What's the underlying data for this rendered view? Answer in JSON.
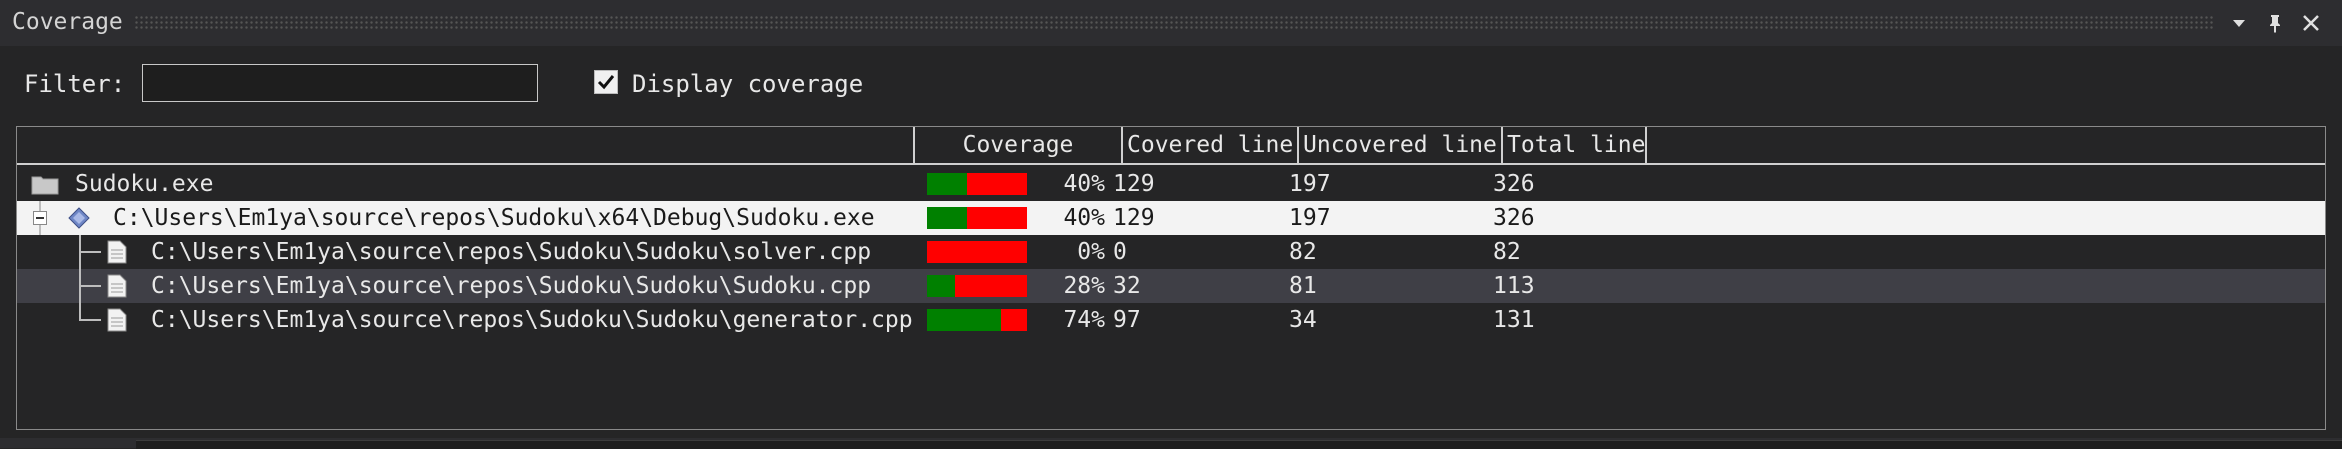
{
  "window": {
    "title": "Coverage"
  },
  "filter": {
    "label": "Filter:",
    "value": "",
    "placeholder": ""
  },
  "display_coverage": {
    "label": "Display coverage",
    "checked": true
  },
  "columns": [
    "Coverage",
    "Covered line",
    "Uncovered line",
    "Total line"
  ],
  "rows": [
    {
      "name": "Sudoku.exe",
      "icon": "folder-icon",
      "coverage": 0.4,
      "pct": "40%",
      "covered": "129",
      "uncovered": "197",
      "total": "326",
      "state": "normal"
    },
    {
      "name": "C:\\Users\\Em1ya\\source\\repos\\Sudoku\\x64\\Debug\\Sudoku.exe",
      "icon": "executable-icon",
      "coverage": 0.4,
      "pct": "40%",
      "covered": "129",
      "uncovered": "197",
      "total": "326",
      "state": "selected",
      "expanded": true
    },
    {
      "name": "C:\\Users\\Em1ya\\source\\repos\\Sudoku\\Sudoku\\solver.cpp",
      "icon": "file-icon",
      "coverage": 0.0,
      "pct": "0%",
      "covered": "0",
      "uncovered": "82",
      "total": "82",
      "state": "normal"
    },
    {
      "name": "C:\\Users\\Em1ya\\source\\repos\\Sudoku\\Sudoku\\Sudoku.cpp",
      "icon": "file-icon",
      "coverage": 0.28,
      "pct": "28%",
      "covered": "32",
      "uncovered": "81",
      "total": "113",
      "state": "hover"
    },
    {
      "name": "C:\\Users\\Em1ya\\source\\repos\\Sudoku\\Sudoku\\generator.cpp",
      "icon": "file-icon",
      "coverage": 0.74,
      "pct": "74%",
      "covered": "97",
      "uncovered": "34",
      "total": "131",
      "state": "normal"
    }
  ],
  "colors": {
    "covered": "#008000",
    "uncovered": "#ff0000",
    "selected_row": "#f3f3f3",
    "hover_row": "#3f3f46"
  }
}
